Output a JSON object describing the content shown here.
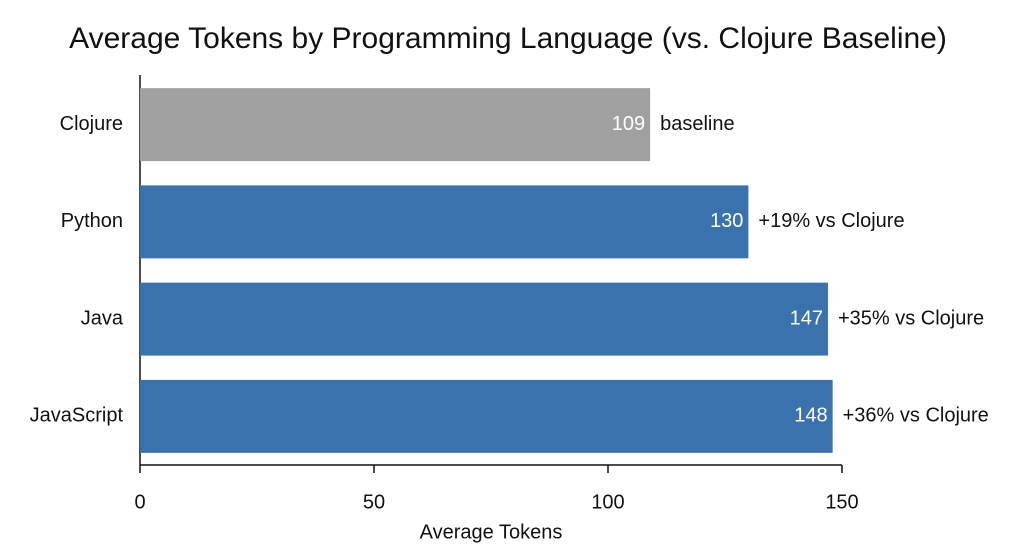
{
  "chart_data": {
    "type": "hbar",
    "title": "Average Tokens by Programming Language (vs. Clojure Baseline)",
    "x_label": "Average Tokens",
    "categories": [
      "Clojure",
      "Python",
      "Java",
      "JavaScript"
    ],
    "values": [
      109,
      130,
      147,
      148
    ],
    "colors": [
      "#a0a0a0",
      "#3a72ad",
      "#3a72ad",
      "#3a72ad"
    ],
    "annotations": [
      "baseline",
      "+19% vs Clojure",
      "+35% vs Clojure",
      "+36% vs Clojure"
    ],
    "xlim": [
      0,
      150
    ],
    "xticks": [
      0,
      50,
      100,
      150
    ],
    "grid": false
  }
}
